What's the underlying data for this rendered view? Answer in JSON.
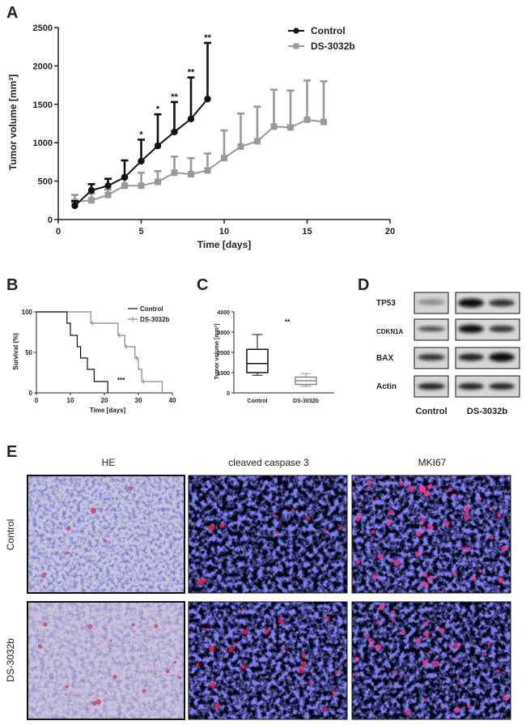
{
  "panels": {
    "a": "A",
    "b": "B",
    "c": "C",
    "d": "D",
    "e": "E"
  },
  "colors": {
    "control": "#111111",
    "treated": "#999999"
  },
  "chart_data": [
    {
      "id": "A",
      "type": "line",
      "xlabel": "Time [days]",
      "ylabel": "Tumor volume [mm³]",
      "xlim": [
        0,
        20
      ],
      "ylim": [
        0,
        2500
      ],
      "xticks": [
        0,
        5,
        10,
        15,
        20
      ],
      "yticks": [
        0,
        500,
        1000,
        1500,
        2000,
        2500
      ],
      "legend": "top-right",
      "series": [
        {
          "name": "Control",
          "x": [
            1,
            2,
            3,
            4,
            5,
            6,
            7,
            8,
            9
          ],
          "y": [
            180,
            380,
            440,
            550,
            760,
            960,
            1140,
            1310,
            1570
          ],
          "err": [
            60,
            80,
            90,
            220,
            280,
            410,
            390,
            540,
            730
          ],
          "sig": [
            "",
            "",
            "",
            "",
            "*",
            "*",
            "**",
            "**",
            "**"
          ]
        },
        {
          "name": "DS-3032b",
          "x": [
            1,
            2,
            3,
            4,
            5,
            6,
            7,
            8,
            9,
            10,
            11,
            12,
            13,
            14,
            15,
            16
          ],
          "y": [
            230,
            250,
            320,
            440,
            440,
            490,
            610,
            590,
            640,
            800,
            950,
            1020,
            1210,
            1200,
            1300,
            1270
          ],
          "err": [
            90,
            90,
            70,
            110,
            170,
            140,
            210,
            210,
            220,
            360,
            430,
            450,
            480,
            480,
            510,
            530
          ]
        }
      ]
    },
    {
      "id": "B",
      "type": "line",
      "xlabel": "Time [days]",
      "ylabel": "Survival (%)",
      "xlim": [
        0,
        40
      ],
      "ylim": [
        0,
        100
      ],
      "xticks": [
        0,
        10,
        20,
        30,
        40
      ],
      "yticks": [
        0,
        50,
        100
      ],
      "legend": "top-right",
      "annotation": "***",
      "series": [
        {
          "name": "Control",
          "steps": [
            [
              0,
              100
            ],
            [
              9,
              100
            ],
            [
              9,
              86
            ],
            [
              10,
              86
            ],
            [
              10,
              71
            ],
            [
              12,
              71
            ],
            [
              12,
              57
            ],
            [
              13,
              57
            ],
            [
              13,
              43
            ],
            [
              15,
              43
            ],
            [
              15,
              29
            ],
            [
              17,
              29
            ],
            [
              17,
              14
            ],
            [
              21,
              14
            ],
            [
              21,
              0
            ]
          ]
        },
        {
          "name": "DS-3032b",
          "steps": [
            [
              0,
              100
            ],
            [
              16,
              100
            ],
            [
              16,
              86
            ],
            [
              24,
              86
            ],
            [
              24,
              71
            ],
            [
              26,
              71
            ],
            [
              26,
              57
            ],
            [
              29,
              57
            ],
            [
              29,
              43
            ],
            [
              30,
              43
            ],
            [
              30,
              29
            ],
            [
              31,
              29
            ],
            [
              31,
              14
            ],
            [
              37,
              14
            ],
            [
              37,
              0
            ]
          ],
          "censor": [
            [
              16,
              86
            ],
            [
              24,
              71
            ],
            [
              26,
              57
            ],
            [
              29,
              43
            ],
            [
              31,
              14
            ]
          ]
        }
      ]
    },
    {
      "id": "C",
      "type": "box",
      "ylabel": "Tumor volume [mm³]",
      "ylim": [
        0,
        4000
      ],
      "yticks": [
        0,
        1000,
        2000,
        3000,
        4000
      ],
      "categories": [
        "Control",
        "DS-3032b"
      ],
      "boxes": [
        {
          "name": "Control",
          "min": 870,
          "q1": 1000,
          "median": 1450,
          "q3": 2150,
          "max": 2880
        },
        {
          "name": "DS-3032b",
          "min": 330,
          "q1": 420,
          "median": 600,
          "q3": 780,
          "max": 950
        }
      ],
      "annotation": "**"
    }
  ],
  "blot": {
    "rows": [
      "TP53",
      "CDKN1A",
      "BAX",
      "Actin"
    ],
    "cols": [
      "Control",
      "DS-3032b"
    ]
  },
  "histology": {
    "columns": [
      "HE",
      "cleaved caspase 3",
      "MKI67"
    ],
    "rows": [
      "Control",
      "DS-3032b"
    ]
  }
}
